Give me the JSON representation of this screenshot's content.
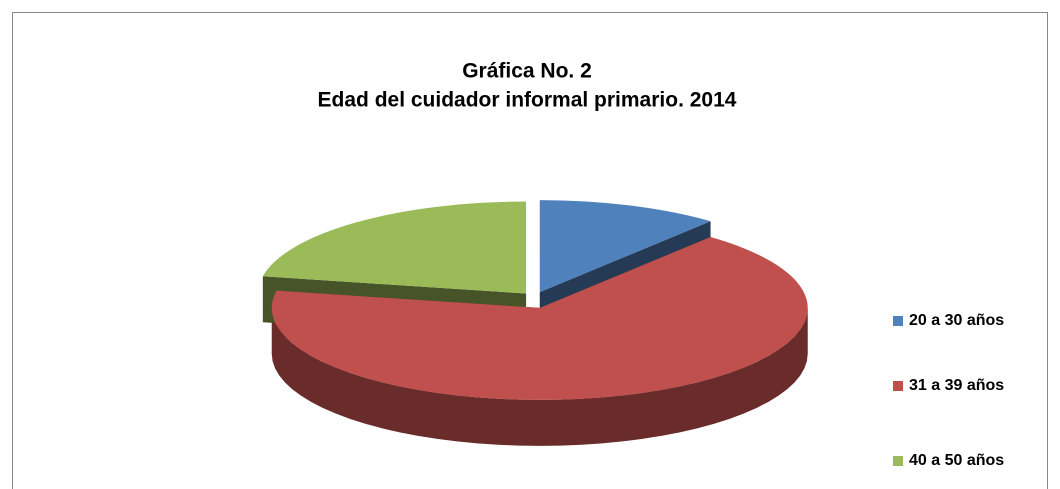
{
  "chart_data": {
    "type": "pie3d",
    "title": "Gráfica No. 2",
    "subtitle": "Edad del cuidador informal primario.  2014",
    "categories": [
      "20 a 30 años",
      "31 a 39 años",
      "40 a 50 años"
    ],
    "values": [
      11,
      67,
      22
    ],
    "colors": [
      "#4f81bd",
      "#c0504d",
      "#9bbb59"
    ],
    "legend": "right"
  }
}
